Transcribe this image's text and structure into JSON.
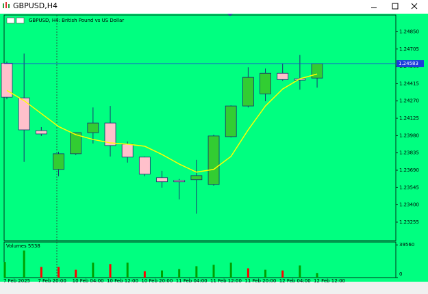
{
  "window": {
    "title": "GBPUSD,H4"
  },
  "chart_data": [
    {
      "type": "candlestick",
      "title": "GBPUSD, H4:  British Pound vs US Dollar",
      "categories": [
        "7 Feb 2025",
        null,
        "7 Feb 20:00",
        null,
        "10 Feb 04:00",
        null,
        "10 Feb 12:00",
        null,
        "10 Feb 20:00",
        null,
        "11 Feb 04:00",
        null,
        "11 Feb 12:00",
        null,
        "11 Feb 20:00",
        null,
        "12 Feb 04:00",
        null,
        "12 Feb 12:00"
      ],
      "open": [
        1.24587,
        1.24296,
        1.24022,
        1.23697,
        1.23828,
        1.24005,
        1.24085,
        1.23908,
        1.238,
        1.23628,
        1.23605,
        1.23611,
        1.23571,
        1.23971,
        1.24228,
        1.2433,
        1.24502,
        1.24456,
        1.24462
      ],
      "high": [
        1.246,
        1.24667,
        1.24051,
        1.23845,
        1.24005,
        1.24216,
        1.24228,
        1.23931,
        1.23805,
        1.23685,
        1.23617,
        1.23777,
        1.23988,
        1.24233,
        1.24553,
        1.24542,
        1.24582,
        1.24656,
        1.24583
      ],
      "low": [
        1.24285,
        1.2376,
        1.23977,
        1.2364,
        1.23817,
        1.23914,
        1.23805,
        1.23754,
        1.2364,
        1.23543,
        1.23446,
        1.23326,
        1.2356,
        1.23965,
        1.24216,
        1.24268,
        1.24439,
        1.24365,
        1.24382
      ],
      "close": [
        1.24302,
        1.24028,
        1.23994,
        1.23828,
        1.24005,
        1.24085,
        1.23897,
        1.238,
        1.23657,
        1.23594,
        1.23594,
        1.23645,
        1.23977,
        1.24228,
        1.24468,
        1.24502,
        1.2445,
        1.24445,
        1.24583
      ],
      "up_color": "#32cd32",
      "down_color": "#ffc0cb",
      "moving_average": {
        "color": "#ffff00",
        "values": [
          1.24359,
          1.24273,
          1.24165,
          1.24056,
          1.23988,
          1.23948,
          1.23919,
          1.23908,
          1.23891,
          1.23822,
          1.23742,
          1.23674,
          1.23697,
          1.23805,
          1.24028,
          1.24228,
          1.2437,
          1.24456,
          1.24496
        ]
      },
      "current_price": 1.24583,
      "ylim": [
        1.231,
        1.2499
      ],
      "yticks": [
        {
          "value": 1.2485,
          "label": "1.24850"
        },
        1.24705,
        {
          "value": 1.2456,
          "label": "1.24560"
        },
        1.24415,
        {
          "value": 1.2427,
          "label": "1.24270"
        },
        1.24125,
        {
          "value": 1.2398,
          "label": "1.23980"
        },
        1.23835,
        {
          "value": 1.2369,
          "label": "1.23690"
        },
        1.23545,
        {
          "value": 1.234,
          "label": "1.23400"
        },
        1.23255
      ]
    },
    {
      "type": "bar",
      "title": "Volumes 5538",
      "values": [
        18900,
        32680,
        12900,
        12900,
        9460,
        18060,
        16340,
        18060,
        7740,
        8600,
        10320,
        13760,
        15480,
        18060,
        11180,
        9460,
        8600,
        14620,
        5538
      ],
      "colors": [
        "#00a000",
        "#00a000",
        "#ff0000",
        "#ff0000",
        "#ff0000",
        "#00a000",
        "#ff0000",
        "#00a000",
        "#ff0000",
        "#00a000",
        "#00a000",
        "#00a000",
        "#00a000",
        "#00a000",
        "#ff0000",
        "#00a000",
        "#ff0000",
        "#00a000",
        "#00a000"
      ],
      "ylim": [
        0,
        43000
      ],
      "yticks": [
        39560,
        0
      ]
    }
  ]
}
